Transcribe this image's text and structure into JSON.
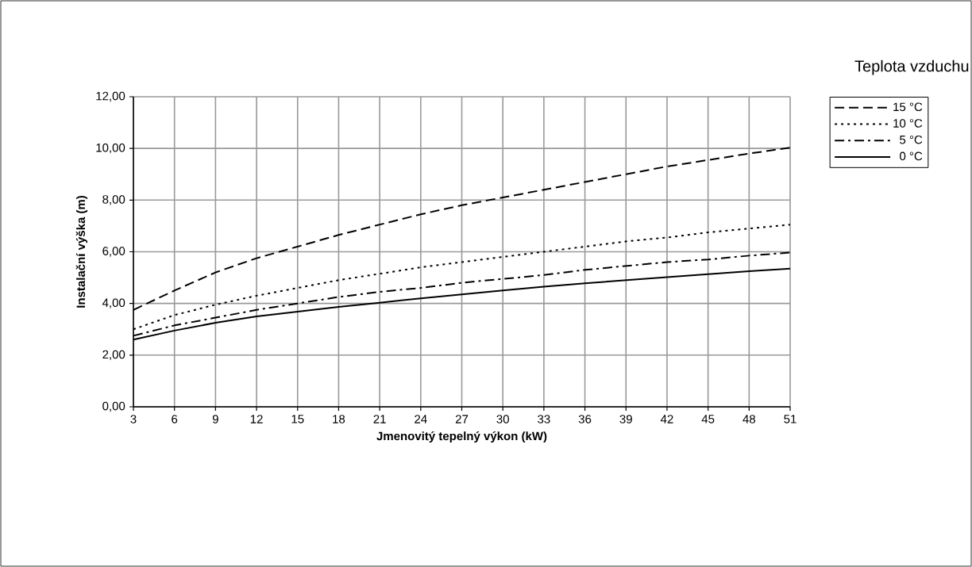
{
  "chart_data": {
    "type": "line",
    "xlabel": "Jmenovitý tepelný výkon (kW)",
    "ylabel": "Instalační výška (m)",
    "legend_title": "Teplota vzduchu",
    "x": [
      3,
      6,
      9,
      12,
      15,
      18,
      21,
      24,
      27,
      30,
      33,
      36,
      39,
      42,
      45,
      48,
      51
    ],
    "series": [
      {
        "name": "15 °C",
        "color": "#000000",
        "line_style": "dashed",
        "values": [
          3.75,
          4.5,
          5.2,
          5.75,
          6.2,
          6.65,
          7.05,
          7.45,
          7.8,
          8.1,
          8.4,
          8.7,
          9.0,
          9.3,
          9.55,
          9.8,
          10.03
        ]
      },
      {
        "name": "10 °C",
        "color": "#000000",
        "line_style": "dotted",
        "values": [
          3.0,
          3.55,
          3.95,
          4.3,
          4.6,
          4.9,
          5.15,
          5.4,
          5.6,
          5.8,
          6.0,
          6.2,
          6.4,
          6.55,
          6.75,
          6.9,
          7.05
        ]
      },
      {
        "name": "5 °C",
        "color": "#000000",
        "line_style": "dashdot",
        "values": [
          2.75,
          3.15,
          3.45,
          3.75,
          4.0,
          4.25,
          4.45,
          4.6,
          4.8,
          4.95,
          5.1,
          5.3,
          5.45,
          5.6,
          5.7,
          5.85,
          5.97
        ]
      },
      {
        "name": "0 °C",
        "color": "#000000",
        "line_style": "solid",
        "values": [
          2.6,
          2.95,
          3.25,
          3.5,
          3.68,
          3.87,
          4.03,
          4.2,
          4.35,
          4.5,
          4.65,
          4.78,
          4.9,
          5.02,
          5.13,
          5.25,
          5.35
        ]
      }
    ],
    "xlim": [
      3,
      51
    ],
    "ylim": [
      0,
      12
    ],
    "xticks": [
      3,
      6,
      9,
      12,
      15,
      18,
      21,
      24,
      27,
      30,
      33,
      36,
      39,
      42,
      45,
      48,
      51
    ],
    "yticks": [
      {
        "value": 0,
        "label": "0,00"
      },
      {
        "value": 2,
        "label": "2,00"
      },
      {
        "value": 4,
        "label": "4,00"
      },
      {
        "value": 6,
        "label": "6,00"
      },
      {
        "value": 8,
        "label": "8,00"
      },
      {
        "value": 10,
        "label": "10,00"
      },
      {
        "value": 12,
        "label": "12,00"
      }
    ],
    "grid": true,
    "legend": "top right",
    "marker": "none"
  }
}
